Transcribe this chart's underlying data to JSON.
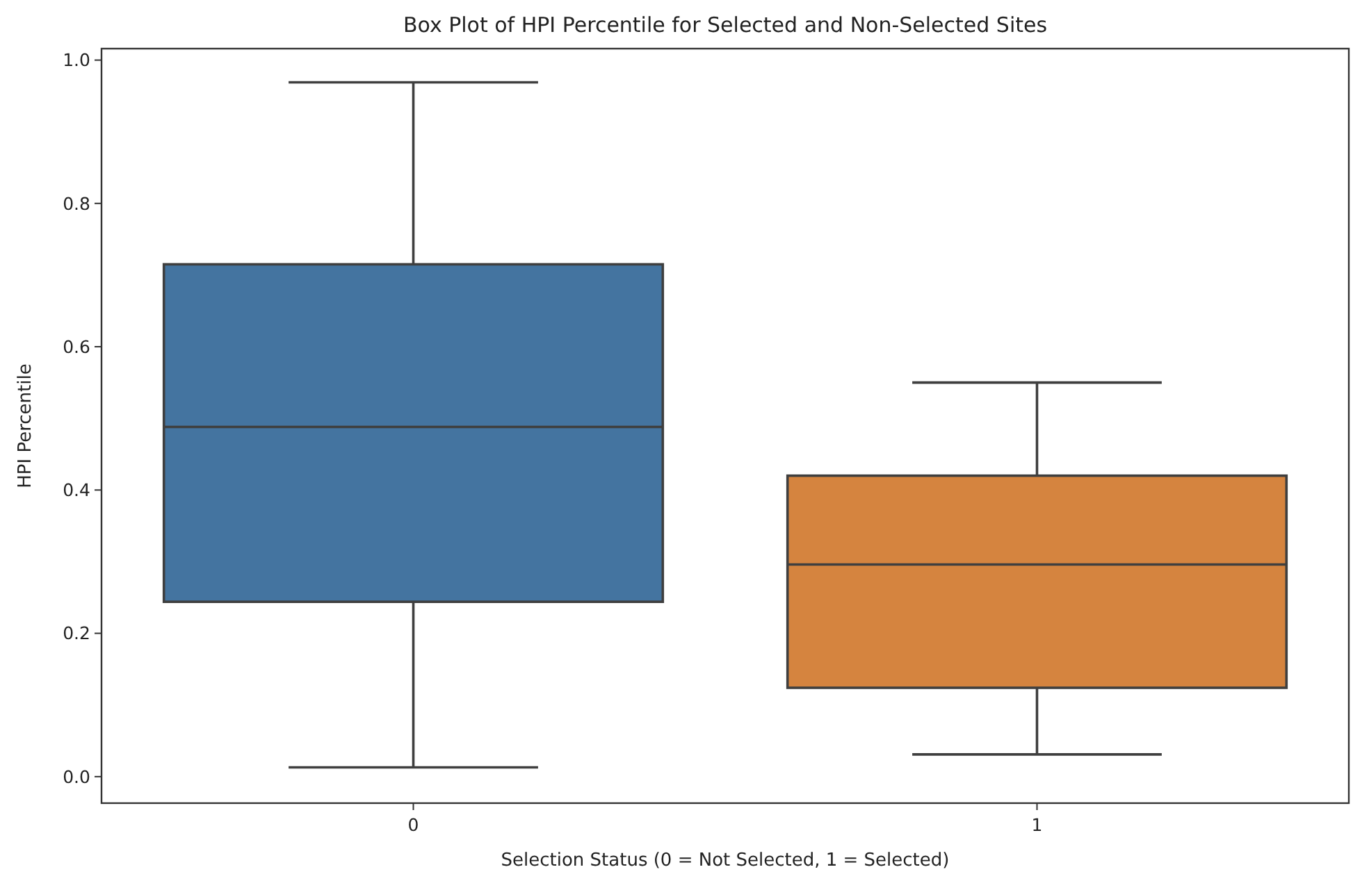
{
  "chart_data": {
    "type": "box",
    "title": "Box Plot of HPI Percentile for Selected and Non-Selected Sites",
    "xlabel": "Selection Status (0 = Not Selected, 1 = Selected)",
    "ylabel": "HPI Percentile",
    "categories": [
      "0",
      "1"
    ],
    "colors": [
      "#4474a0",
      "#d5843f"
    ],
    "boxes": [
      {
        "low": 0.013,
        "q1": 0.244,
        "median": 0.488,
        "q3": 0.715,
        "high": 0.969
      },
      {
        "low": 0.031,
        "q1": 0.124,
        "median": 0.296,
        "q3": 0.42,
        "high": 0.55
      }
    ],
    "ylim": [
      -0.037,
      1.016
    ],
    "yticks": [
      {
        "value": 0,
        "label": "0.0"
      },
      {
        "value": 0.2,
        "label": "0.2"
      },
      {
        "value": 0.4,
        "label": "0.4"
      },
      {
        "value": 0.6,
        "label": "0.6"
      },
      {
        "value": 0.8,
        "label": "0.8"
      },
      {
        "value": 1,
        "label": "1.0"
      }
    ],
    "grid": false
  }
}
